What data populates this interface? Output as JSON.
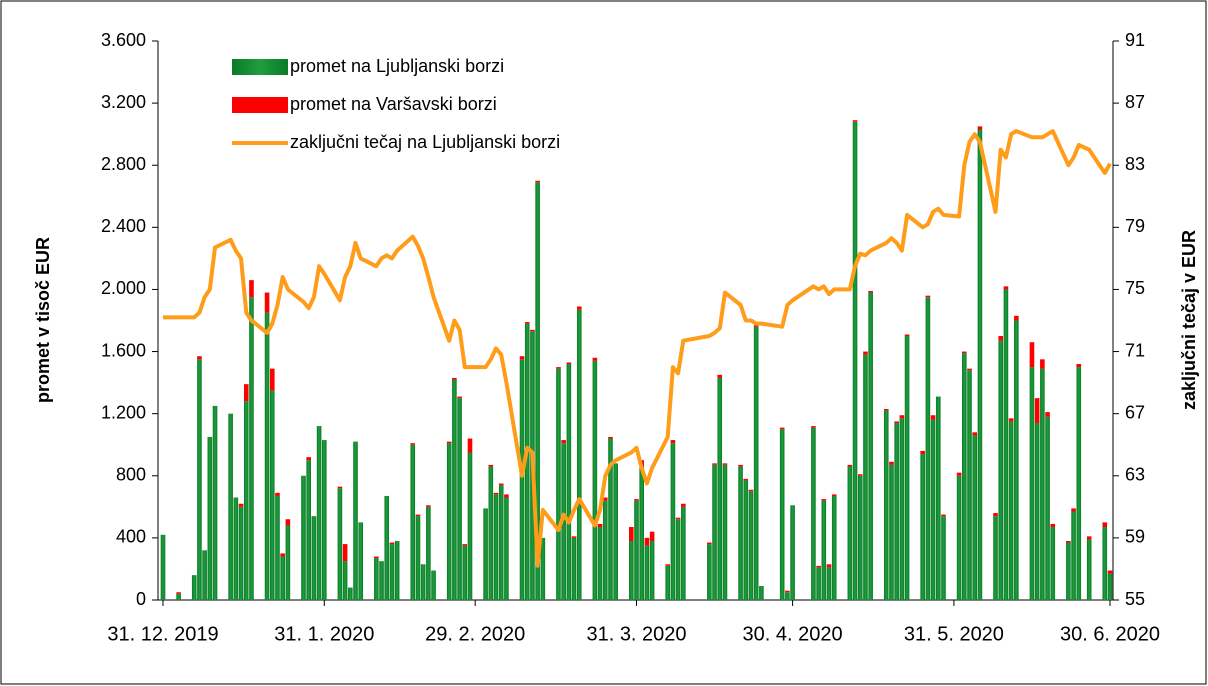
{
  "chart_data": {
    "type": "bar-line",
    "y_label": "promet v tisoč EUR",
    "y2_label": "zaključni tečaj v EUR",
    "xlim": [
      "2019-12-31",
      "2020-06-30"
    ],
    "xticks": [
      {
        "value": "2019-12-31",
        "label": "31. 12. 2019"
      },
      {
        "value": "2020-01-31",
        "label": "31. 1. 2020"
      },
      {
        "value": "2020-02-29",
        "label": "29. 2. 2020"
      },
      {
        "value": "2020-03-31",
        "label": "31. 3. 2020"
      },
      {
        "value": "2020-04-30",
        "label": "30. 4. 2020"
      },
      {
        "value": "2020-05-31",
        "label": "31. 5. 2020"
      },
      {
        "value": "2020-06-30",
        "label": "30. 6. 2020"
      }
    ],
    "ylim": [
      0,
      3600
    ],
    "yticks": [
      0,
      400,
      800,
      {
        "value": 1200,
        "label": "1.200"
      },
      {
        "value": 1600,
        "label": "1.600"
      },
      {
        "value": 2000,
        "label": "2.000"
      },
      {
        "value": 2400,
        "label": "2.400"
      },
      {
        "value": 2800,
        "label": "2.800"
      },
      {
        "value": 3200,
        "label": "3.200"
      },
      {
        "value": 3600,
        "label": "3.600"
      }
    ],
    "y2lim": [
      55,
      91
    ],
    "y2ticks": [
      55,
      59,
      63,
      67,
      71,
      75,
      79,
      83,
      87,
      91
    ],
    "legend": "top-left",
    "x": [
      "2019-12-31",
      "2020-01-03",
      "2020-01-06",
      "2020-01-07",
      "2020-01-08",
      "2020-01-09",
      "2020-01-10",
      "2020-01-13",
      "2020-01-14",
      "2020-01-15",
      "2020-01-16",
      "2020-01-17",
      "2020-01-20",
      "2020-01-21",
      "2020-01-22",
      "2020-01-23",
      "2020-01-24",
      "2020-01-27",
      "2020-01-28",
      "2020-01-29",
      "2020-01-30",
      "2020-01-31",
      "2020-02-03",
      "2020-02-04",
      "2020-02-05",
      "2020-02-06",
      "2020-02-07",
      "2020-02-10",
      "2020-02-11",
      "2020-02-12",
      "2020-02-13",
      "2020-02-14",
      "2020-02-17",
      "2020-02-18",
      "2020-02-19",
      "2020-02-20",
      "2020-02-21",
      "2020-02-24",
      "2020-02-25",
      "2020-02-26",
      "2020-02-27",
      "2020-02-28",
      "2020-03-02",
      "2020-03-03",
      "2020-03-04",
      "2020-03-05",
      "2020-03-06",
      "2020-03-09",
      "2020-03-10",
      "2020-03-11",
      "2020-03-12",
      "2020-03-13",
      "2020-03-16",
      "2020-03-17",
      "2020-03-18",
      "2020-03-19",
      "2020-03-20",
      "2020-03-23",
      "2020-03-24",
      "2020-03-25",
      "2020-03-26",
      "2020-03-27",
      "2020-03-30",
      "2020-03-31",
      "2020-04-01",
      "2020-04-02",
      "2020-04-03",
      "2020-04-06",
      "2020-04-07",
      "2020-04-08",
      "2020-04-09",
      "2020-04-14",
      "2020-04-15",
      "2020-04-16",
      "2020-04-17",
      "2020-04-20",
      "2020-04-21",
      "2020-04-22",
      "2020-04-23",
      "2020-04-24",
      "2020-04-28",
      "2020-04-29",
      "2020-04-30",
      "2020-05-04",
      "2020-05-05",
      "2020-05-06",
      "2020-05-07",
      "2020-05-08",
      "2020-05-11",
      "2020-05-12",
      "2020-05-13",
      "2020-05-14",
      "2020-05-15",
      "2020-05-18",
      "2020-05-19",
      "2020-05-20",
      "2020-05-21",
      "2020-05-22",
      "2020-05-25",
      "2020-05-26",
      "2020-05-27",
      "2020-05-28",
      "2020-05-29",
      "2020-06-01",
      "2020-06-02",
      "2020-06-03",
      "2020-06-04",
      "2020-06-05",
      "2020-06-08",
      "2020-06-09",
      "2020-06-10",
      "2020-06-11",
      "2020-06-12",
      "2020-06-15",
      "2020-06-16",
      "2020-06-17",
      "2020-06-18",
      "2020-06-19",
      "2020-06-22",
      "2020-06-23",
      "2020-06-24",
      "2020-06-26",
      "2020-06-29",
      "2020-06-30"
    ],
    "series": [
      {
        "name": "promet na Ljubljanski borzi",
        "type": "bar",
        "color": "#1e9e3c",
        "values": [
          420,
          40,
          160,
          1550,
          320,
          1050,
          1250,
          1200,
          660,
          600,
          1280,
          1950,
          1850,
          1350,
          670,
          280,
          480,
          800,
          900,
          540,
          1120,
          1030,
          720,
          250,
          80,
          1020,
          500,
          270,
          250,
          670,
          360,
          380,
          1000,
          540,
          230,
          600,
          190,
          1010,
          1420,
          1300,
          350,
          950,
          590,
          860,
          680,
          740,
          660,
          1550,
          1780,
          1730,
          2690,
          400,
          1490,
          1010,
          1520,
          400,
          1870,
          1540,
          470,
          640,
          1040,
          880,
          380,
          640,
          860,
          350,
          380,
          220,
          1010,
          520,
          600,
          360,
          870,
          1430,
          870,
          860,
          770,
          700,
          1760,
          90,
          1100,
          50,
          610,
          1110,
          210,
          640,
          210,
          670,
          860,
          3080,
          800,
          1580,
          1980,
          1220,
          870,
          1140,
          1170,
          1700,
          940,
          1950,
          1160,
          1310,
          540,
          800,
          1590,
          1480,
          1060,
          3030,
          540,
          1670,
          2000,
          1150,
          1800,
          1500,
          1140,
          1490,
          1180,
          470,
          370,
          570,
          1500,
          390,
          470,
          170
        ]
      },
      {
        "name": "promet na Varšavski borzi",
        "type": "bar",
        "color": "#ff0000",
        "values": [
          0,
          10,
          0,
          20,
          0,
          0,
          0,
          0,
          0,
          20,
          110,
          110,
          130,
          140,
          20,
          20,
          40,
          0,
          20,
          0,
          0,
          0,
          10,
          110,
          0,
          0,
          0,
          10,
          0,
          0,
          10,
          0,
          10,
          10,
          0,
          10,
          0,
          10,
          10,
          10,
          10,
          90,
          0,
          10,
          10,
          10,
          20,
          20,
          10,
          10,
          10,
          0,
          10,
          20,
          10,
          10,
          20,
          20,
          20,
          20,
          10,
          0,
          90,
          10,
          40,
          50,
          60,
          10,
          20,
          10,
          20,
          10,
          10,
          20,
          10,
          10,
          10,
          10,
          10,
          0,
          10,
          10,
          0,
          10,
          10,
          10,
          20,
          10,
          10,
          10,
          10,
          20,
          10,
          10,
          20,
          10,
          20,
          10,
          20,
          10,
          30,
          0,
          10,
          20,
          10,
          10,
          20,
          20,
          20,
          30,
          20,
          20,
          30,
          160,
          160,
          60,
          30,
          20,
          10,
          20,
          20,
          20,
          30,
          20
        ]
      },
      {
        "name": "zaključni tečaj na Ljubljanski borzi",
        "type": "line",
        "axis": "y2",
        "color": "#ff9c1a",
        "values": [
          73.2,
          73.2,
          73.2,
          73.5,
          74.5,
          75.0,
          77.7,
          78.2,
          77.5,
          77.0,
          73.5,
          73.0,
          72.2,
          72.8,
          74.0,
          75.8,
          75.0,
          74.2,
          73.8,
          74.5,
          76.5,
          76.0,
          74.3,
          75.8,
          76.5,
          78.0,
          77.0,
          76.5,
          77.0,
          77.2,
          77.0,
          77.5,
          78.4,
          77.8,
          77.0,
          75.8,
          74.5,
          71.7,
          73.0,
          72.4,
          70.0,
          70.0,
          70.0,
          70.5,
          71.2,
          70.8,
          69.0,
          63.0,
          64.8,
          64.5,
          57.2,
          60.8,
          59.5,
          60.5,
          60.0,
          60.8,
          61.5,
          59.8,
          60.8,
          63.0,
          63.7,
          64.0,
          64.5,
          64.8,
          63.5,
          62.5,
          63.5,
          65.5,
          70.0,
          69.6,
          71.7,
          72.0,
          72.2,
          72.5,
          74.8,
          74.0,
          73.0,
          73.0,
          72.8,
          72.8,
          72.6,
          74.0,
          74.3,
          75.2,
          75.0,
          75.2,
          74.7,
          75.0,
          75.0,
          76.5,
          77.3,
          77.2,
          77.5,
          78.0,
          78.3,
          78.0,
          77.5,
          79.8,
          79.0,
          79.2,
          80.0,
          80.2,
          79.8,
          79.7,
          83.0,
          84.5,
          85.0,
          84.5,
          80.0,
          84.0,
          83.5,
          85.0,
          85.2,
          84.8,
          84.8,
          84.8,
          85.0,
          85.2,
          83.0,
          83.5,
          84.3,
          84.0,
          82.5,
          83.1
        ]
      }
    ]
  }
}
